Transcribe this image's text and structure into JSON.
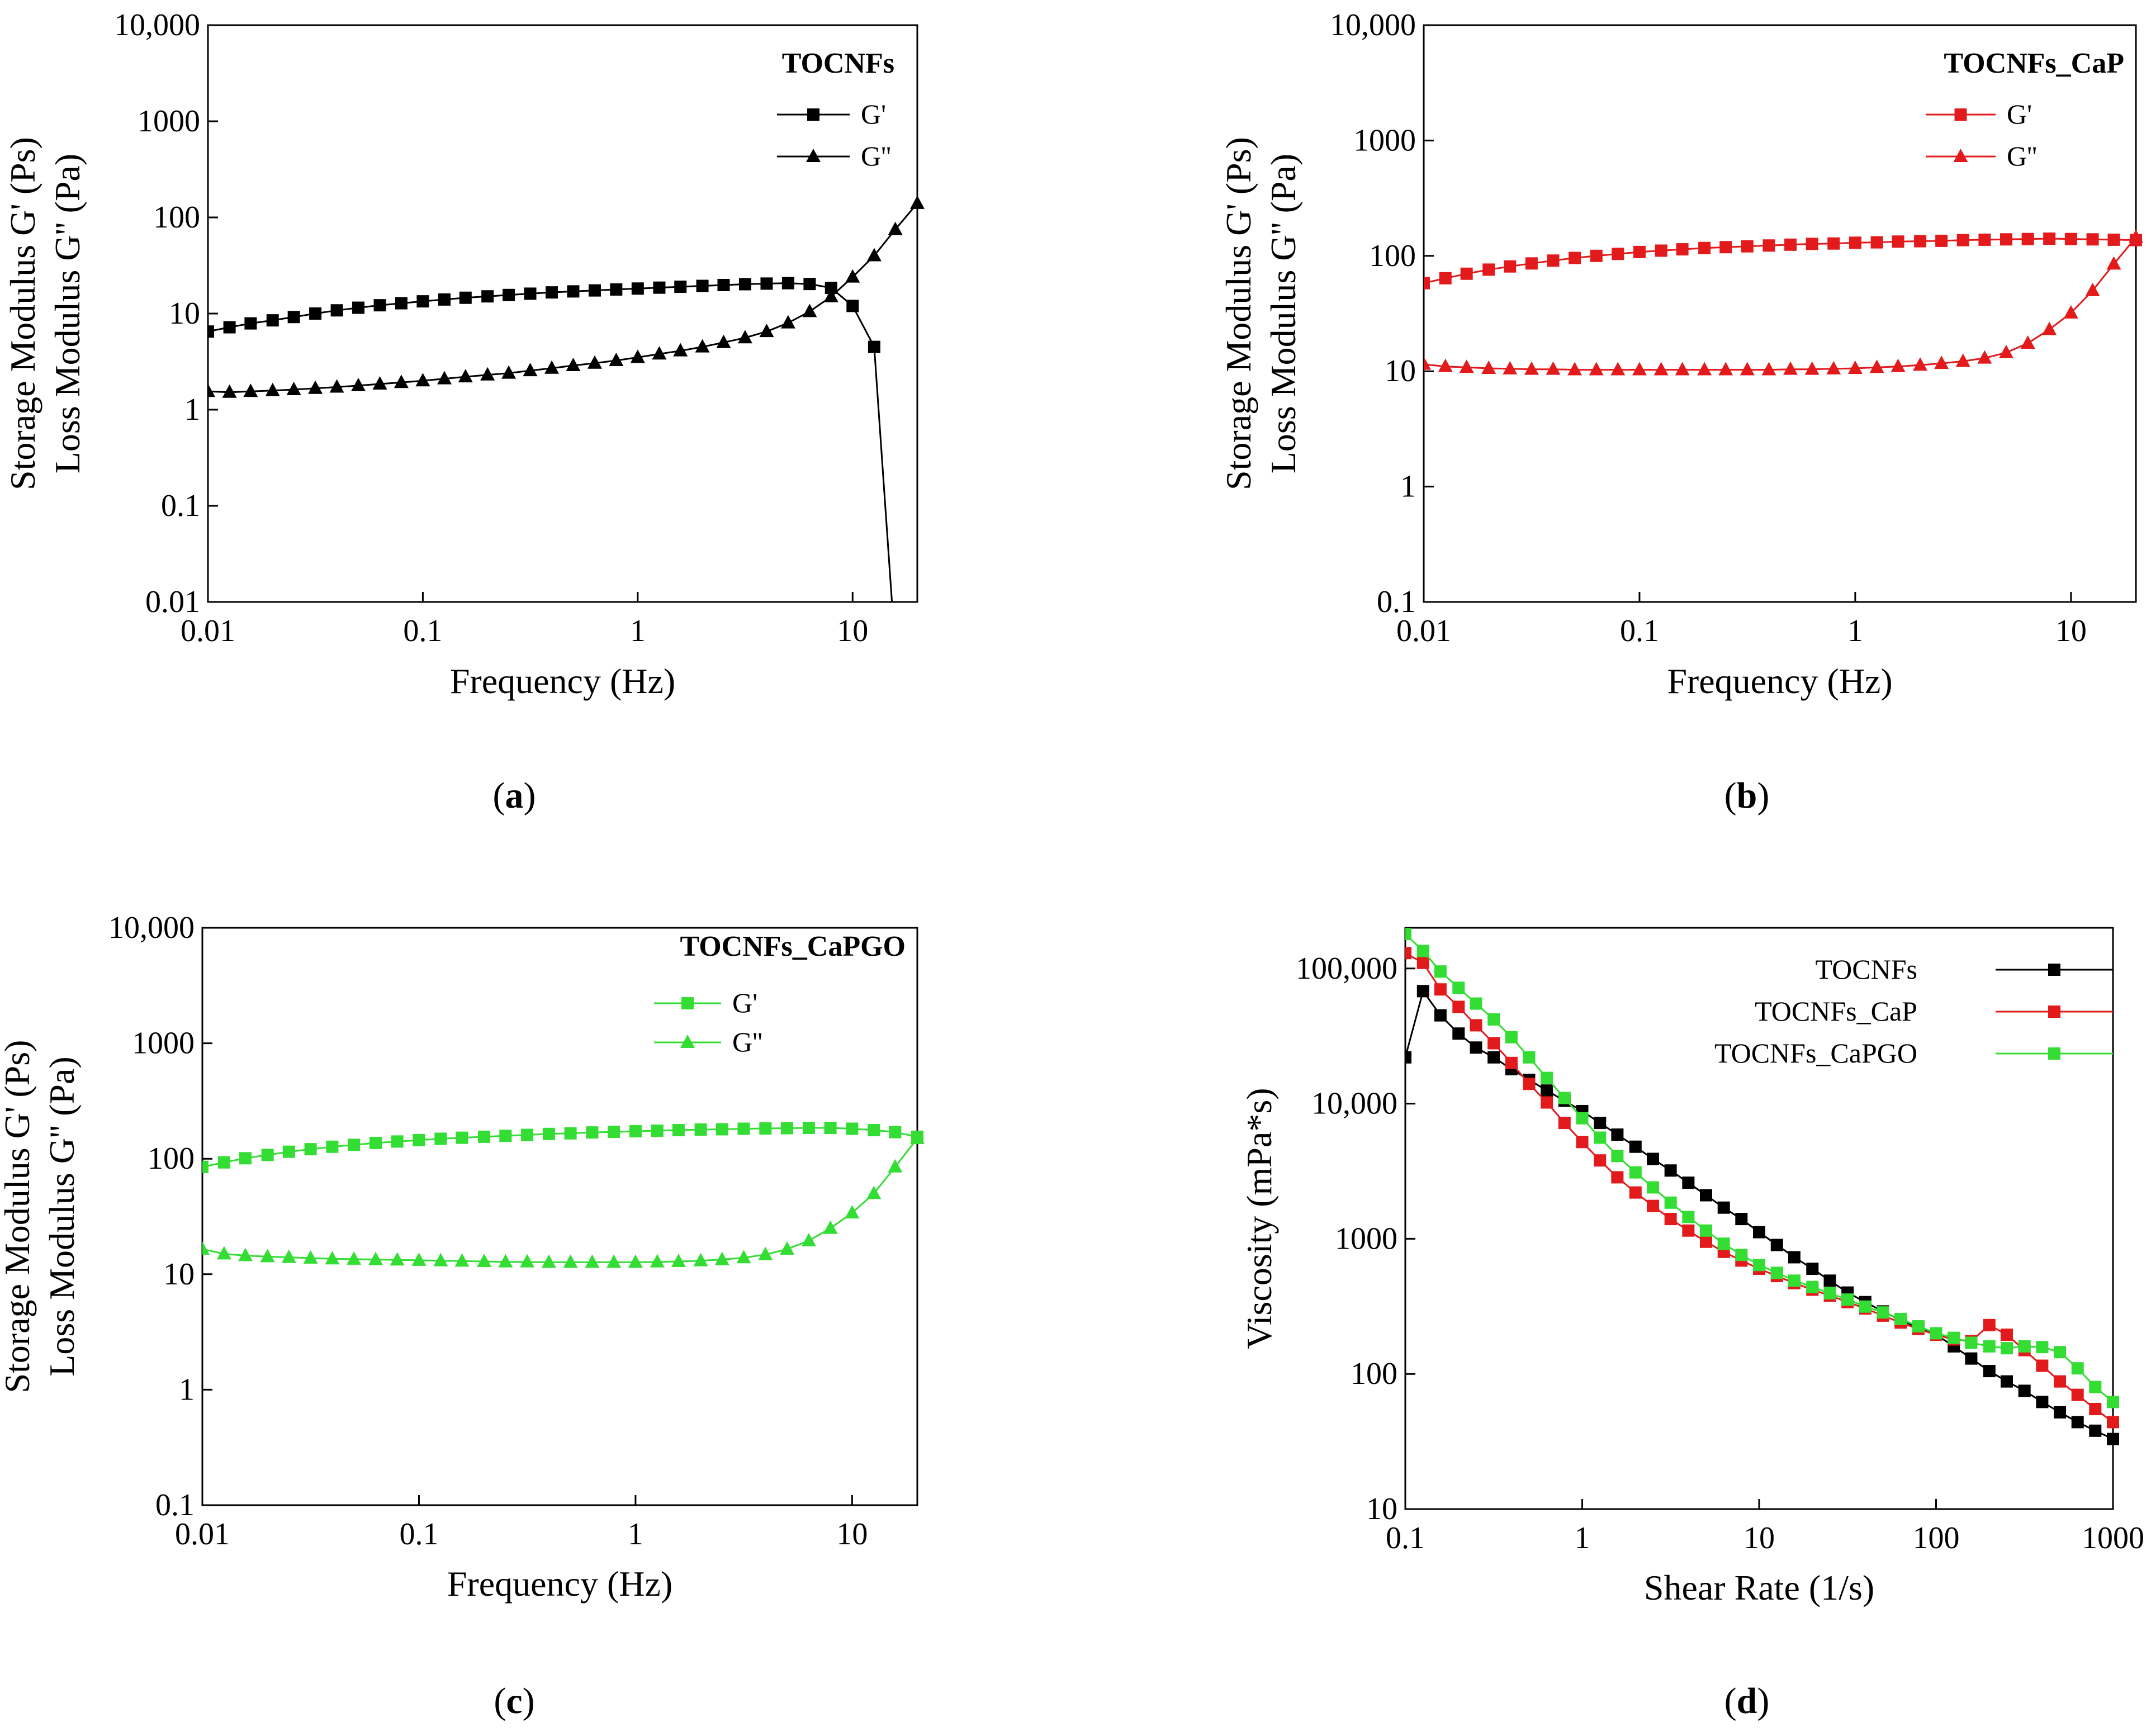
{
  "captions": [
    "a",
    "b",
    "c",
    "d"
  ],
  "chart_data": [
    {
      "id": "a",
      "type": "line",
      "x_scale": "log",
      "y_scale": "log",
      "xlabel": "Frequency (Hz)",
      "ylabel_line1": "Storage Modulus G' (Ps)",
      "ylabel_line2": "Loss Modulus G'' (Pa)",
      "xlim": [
        0.01,
        20
      ],
      "ylim": [
        0.01,
        10000
      ],
      "x_ticks": [
        {
          "value": 0.01,
          "label": "0.01"
        },
        {
          "value": 0.1,
          "label": "0.1"
        },
        {
          "value": 1,
          "label": "1"
        },
        {
          "value": 10,
          "label": "10"
        }
      ],
      "y_ticks": [
        {
          "value": 0.01,
          "label": "0.01"
        },
        {
          "value": 0.1,
          "label": "0.1"
        },
        {
          "value": 1,
          "label": "1"
        },
        {
          "value": 10,
          "label": "10"
        },
        {
          "value": 100,
          "label": "100"
        },
        {
          "value": 1000,
          "label": "1000"
        },
        {
          "value": 10000,
          "label": "10,000"
        }
      ],
      "legend_title": "TOCNFs",
      "legend_position": "top-right",
      "series": [
        {
          "name": "G'",
          "marker": "square",
          "color": "#000000",
          "x": [
            0.01,
            0.0126,
            0.0158,
            0.02,
            0.0251,
            0.0316,
            0.0398,
            0.0501,
            0.0631,
            0.0794,
            0.1,
            0.126,
            0.158,
            0.2,
            0.251,
            0.316,
            0.398,
            0.501,
            0.631,
            0.794,
            1,
            1.26,
            1.58,
            2,
            2.51,
            3.16,
            3.98,
            5.01,
            6.31,
            7.94,
            10,
            12.6
          ],
          "values": [
            6.5,
            7.2,
            7.9,
            8.5,
            9.2,
            10.0,
            10.8,
            11.5,
            12.2,
            12.8,
            13.4,
            14.0,
            14.6,
            15.1,
            15.6,
            16.1,
            16.6,
            17.0,
            17.4,
            17.8,
            18.2,
            18.6,
            19.0,
            19.4,
            19.8,
            20.2,
            20.5,
            20.7,
            20.3,
            18.5,
            12.0,
            4.5
          ]
        },
        {
          "name": "G''",
          "marker": "triangle",
          "color": "#000000",
          "x": [
            0.01,
            0.0126,
            0.0158,
            0.02,
            0.0251,
            0.0316,
            0.0398,
            0.0501,
            0.0631,
            0.0794,
            0.1,
            0.126,
            0.158,
            0.2,
            0.251,
            0.316,
            0.398,
            0.501,
            0.631,
            0.794,
            1,
            1.26,
            1.58,
            2,
            2.51,
            3.16,
            3.98,
            5.01,
            6.31,
            7.94,
            10,
            12.6,
            15.8,
            20
          ],
          "values": [
            1.55,
            1.52,
            1.55,
            1.58,
            1.62,
            1.67,
            1.72,
            1.78,
            1.85,
            1.92,
            2.0,
            2.1,
            2.2,
            2.3,
            2.4,
            2.55,
            2.7,
            2.88,
            3.05,
            3.25,
            3.5,
            3.8,
            4.1,
            4.5,
            5.0,
            5.6,
            6.5,
            8.0,
            10.5,
            15.0,
            24.0,
            40.0,
            75.0,
            140.0
          ]
        }
      ]
    },
    {
      "id": "b",
      "type": "line",
      "x_scale": "log",
      "y_scale": "log",
      "xlabel": "Frequency (Hz)",
      "ylabel_line1": "Storage Modulus G' (Ps)",
      "ylabel_line2": "Loss Modulus G'' (Pa)",
      "xlim": [
        0.01,
        20
      ],
      "ylim": [
        0.1,
        10000
      ],
      "x_ticks": [
        {
          "value": 0.01,
          "label": "0.01"
        },
        {
          "value": 0.1,
          "label": "0.1"
        },
        {
          "value": 1,
          "label": "1"
        },
        {
          "value": 10,
          "label": "10"
        }
      ],
      "y_ticks": [
        {
          "value": 0.1,
          "label": "0.1"
        },
        {
          "value": 1,
          "label": "1"
        },
        {
          "value": 10,
          "label": "10"
        },
        {
          "value": 100,
          "label": "100"
        },
        {
          "value": 1000,
          "label": "1000"
        },
        {
          "value": 10000,
          "label": "10,000"
        }
      ],
      "legend_title": "TOCNFs_CaP",
      "legend_position": "top-right",
      "series": [
        {
          "name": "G'",
          "marker": "square",
          "color": "#e31a1c",
          "x": [
            0.01,
            0.0126,
            0.0158,
            0.02,
            0.0251,
            0.0316,
            0.0398,
            0.0501,
            0.0631,
            0.0794,
            0.1,
            0.126,
            0.158,
            0.2,
            0.251,
            0.316,
            0.398,
            0.501,
            0.631,
            0.794,
            1,
            1.26,
            1.58,
            2,
            2.51,
            3.16,
            3.98,
            5.01,
            6.31,
            7.94,
            10,
            12.6,
            15.8,
            20
          ],
          "values": [
            58,
            64,
            70,
            76,
            81,
            86,
            91,
            96,
            100,
            104,
            108,
            111,
            114,
            117,
            119,
            121,
            123,
            125,
            127,
            128,
            130,
            131,
            133,
            134,
            135,
            137,
            138,
            139,
            140,
            141,
            140,
            139,
            138,
            137
          ]
        },
        {
          "name": "G''",
          "marker": "triangle",
          "color": "#e31a1c",
          "x": [
            0.01,
            0.0126,
            0.0158,
            0.02,
            0.0251,
            0.0316,
            0.0398,
            0.0501,
            0.0631,
            0.0794,
            0.1,
            0.126,
            0.158,
            0.2,
            0.251,
            0.316,
            0.398,
            0.501,
            0.631,
            0.794,
            1,
            1.26,
            1.58,
            2,
            2.51,
            3.16,
            3.98,
            5.01,
            6.31,
            7.94,
            10,
            12.6,
            15.8,
            20
          ],
          "values": [
            11.5,
            11.0,
            10.8,
            10.6,
            10.5,
            10.4,
            10.4,
            10.3,
            10.3,
            10.3,
            10.3,
            10.3,
            10.3,
            10.3,
            10.3,
            10.3,
            10.3,
            10.4,
            10.4,
            10.5,
            10.6,
            10.8,
            11.0,
            11.3,
            11.7,
            12.2,
            13.0,
            14.5,
            17.5,
            23.0,
            32.0,
            50.0,
            85.0,
            145.0
          ]
        }
      ]
    },
    {
      "id": "c",
      "type": "line",
      "x_scale": "log",
      "y_scale": "log",
      "xlabel": "Frequency (Hz)",
      "ylabel_line1": "Storage Modulus G' (Ps)",
      "ylabel_line2": "Loss Modulus G'' (Pa)",
      "xlim": [
        0.01,
        20
      ],
      "ylim": [
        0.1,
        10000
      ],
      "x_ticks": [
        {
          "value": 0.01,
          "label": "0.01"
        },
        {
          "value": 0.1,
          "label": "0.1"
        },
        {
          "value": 1,
          "label": "1"
        },
        {
          "value": 10,
          "label": "10"
        }
      ],
      "y_ticks": [
        {
          "value": 0.1,
          "label": "0.1"
        },
        {
          "value": 1,
          "label": "1"
        },
        {
          "value": 10,
          "label": "10"
        },
        {
          "value": 100,
          "label": "100"
        },
        {
          "value": 1000,
          "label": "1000"
        },
        {
          "value": 10000,
          "label": "10,000"
        }
      ],
      "legend_title": "TOCNFs_CaPGO",
      "legend_position": "top-right",
      "series": [
        {
          "name": "G'",
          "marker": "square",
          "color": "#33dd33",
          "x": [
            0.01,
            0.0126,
            0.0158,
            0.02,
            0.0251,
            0.0316,
            0.0398,
            0.0501,
            0.0631,
            0.0794,
            0.1,
            0.126,
            0.158,
            0.2,
            0.251,
            0.316,
            0.398,
            0.501,
            0.631,
            0.794,
            1,
            1.26,
            1.58,
            2,
            2.51,
            3.16,
            3.98,
            5.01,
            6.31,
            7.94,
            10,
            12.6,
            15.8,
            20
          ],
          "values": [
            85,
            93,
            101,
            108,
            115,
            121,
            127,
            132,
            137,
            141,
            145,
            149,
            152,
            155,
            158,
            161,
            164,
            166,
            169,
            171,
            173,
            175,
            177,
            179,
            180,
            182,
            183,
            184,
            185,
            185,
            182,
            177,
            170,
            155
          ]
        },
        {
          "name": "G''",
          "marker": "triangle",
          "color": "#33dd33",
          "x": [
            0.01,
            0.0126,
            0.0158,
            0.02,
            0.0251,
            0.0316,
            0.0398,
            0.0501,
            0.0631,
            0.0794,
            0.1,
            0.126,
            0.158,
            0.2,
            0.251,
            0.316,
            0.398,
            0.501,
            0.631,
            0.794,
            1,
            1.26,
            1.58,
            2,
            2.51,
            3.16,
            3.98,
            5.01,
            6.31,
            7.94,
            10,
            12.6,
            15.8,
            20
          ],
          "values": [
            16.5,
            15.0,
            14.5,
            14.2,
            14.0,
            13.8,
            13.6,
            13.5,
            13.4,
            13.3,
            13.2,
            13.1,
            13.0,
            12.9,
            12.8,
            12.8,
            12.7,
            12.7,
            12.7,
            12.7,
            12.7,
            12.8,
            12.9,
            13.1,
            13.4,
            13.9,
            14.8,
            16.5,
            19.5,
            25.0,
            34.0,
            50.0,
            85.0,
            150.0
          ]
        }
      ]
    },
    {
      "id": "d",
      "type": "line",
      "x_scale": "log",
      "y_scale": "log",
      "xlabel": "Shear Rate (1/s)",
      "ylabel": "Viscosity (mPa*s)",
      "xlim": [
        0.1,
        1000
      ],
      "ylim": [
        10,
        200000
      ],
      "x_ticks": [
        {
          "value": 0.1,
          "label": "0.1"
        },
        {
          "value": 1,
          "label": "1"
        },
        {
          "value": 10,
          "label": "10"
        },
        {
          "value": 100,
          "label": "100"
        },
        {
          "value": 1000,
          "label": "1000"
        }
      ],
      "y_ticks": [
        {
          "value": 10,
          "label": "10"
        },
        {
          "value": 100,
          "label": "100"
        },
        {
          "value": 1000,
          "label": "1000"
        },
        {
          "value": 10000,
          "label": "10,000"
        },
        {
          "value": 100000,
          "label": "100,000"
        }
      ],
      "legend_position": "top-right",
      "series": [
        {
          "name": "TOCNFs",
          "marker": "square",
          "color": "#000000",
          "x": [
            0.1,
            0.126,
            0.158,
            0.2,
            0.251,
            0.316,
            0.398,
            0.501,
            0.631,
            0.794,
            1,
            1.26,
            1.58,
            2,
            2.51,
            3.16,
            3.98,
            5.01,
            6.31,
            7.94,
            10,
            12.6,
            15.8,
            20,
            25.1,
            31.6,
            39.8,
            50.1,
            63.1,
            79.4,
            100,
            126,
            158,
            200,
            251,
            316,
            398,
            501,
            631,
            794,
            1000
          ],
          "values": [
            22000,
            68000,
            45000,
            33000,
            26000,
            22000,
            18000,
            15000,
            12500,
            10500,
            8800,
            7200,
            5900,
            4800,
            3900,
            3200,
            2600,
            2100,
            1700,
            1400,
            1120,
            900,
            730,
            600,
            490,
            400,
            340,
            290,
            250,
            220,
            195,
            160,
            130,
            105,
            88,
            75,
            62,
            52,
            44,
            38,
            33
          ]
        },
        {
          "name": "TOCNFs_CaP",
          "marker": "square",
          "color": "#e31a1c",
          "x": [
            0.1,
            0.126,
            0.158,
            0.2,
            0.251,
            0.316,
            0.398,
            0.501,
            0.631,
            0.794,
            1,
            1.26,
            1.58,
            2,
            2.51,
            3.16,
            3.98,
            5.01,
            6.31,
            7.94,
            10,
            12.6,
            15.8,
            20,
            25.1,
            31.6,
            39.8,
            50.1,
            63.1,
            79.4,
            100,
            126,
            158,
            200,
            251,
            316,
            398,
            501,
            631,
            794,
            1000
          ],
          "values": [
            130000,
            110000,
            70000,
            52000,
            38000,
            28000,
            20000,
            14000,
            10200,
            7200,
            5200,
            3800,
            2850,
            2200,
            1750,
            1400,
            1150,
            950,
            800,
            690,
            600,
            530,
            470,
            420,
            380,
            340,
            305,
            270,
            240,
            215,
            195,
            180,
            175,
            230,
            195,
            150,
            115,
            88,
            70,
            55,
            44
          ]
        },
        {
          "name": "TOCNFs_CaPGO",
          "marker": "square",
          "color": "#33dd33",
          "x": [
            0.1,
            0.126,
            0.158,
            0.2,
            0.251,
            0.316,
            0.398,
            0.501,
            0.631,
            0.794,
            1,
            1.26,
            1.58,
            2,
            2.51,
            3.16,
            3.98,
            5.01,
            6.31,
            7.94,
            10,
            12.6,
            15.8,
            20,
            25.1,
            31.6,
            39.8,
            50.1,
            63.1,
            79.4,
            100,
            126,
            158,
            200,
            251,
            316,
            398,
            501,
            631,
            794,
            1000
          ],
          "values": [
            180000,
            135000,
            95000,
            72000,
            55000,
            42000,
            31000,
            22000,
            15500,
            11000,
            7800,
            5600,
            4100,
            3100,
            2400,
            1850,
            1450,
            1150,
            920,
            760,
            640,
            560,
            490,
            440,
            395,
            355,
            315,
            285,
            255,
            225,
            200,
            185,
            170,
            160,
            155,
            160,
            158,
            145,
            110,
            80,
            62
          ]
        }
      ]
    }
  ]
}
